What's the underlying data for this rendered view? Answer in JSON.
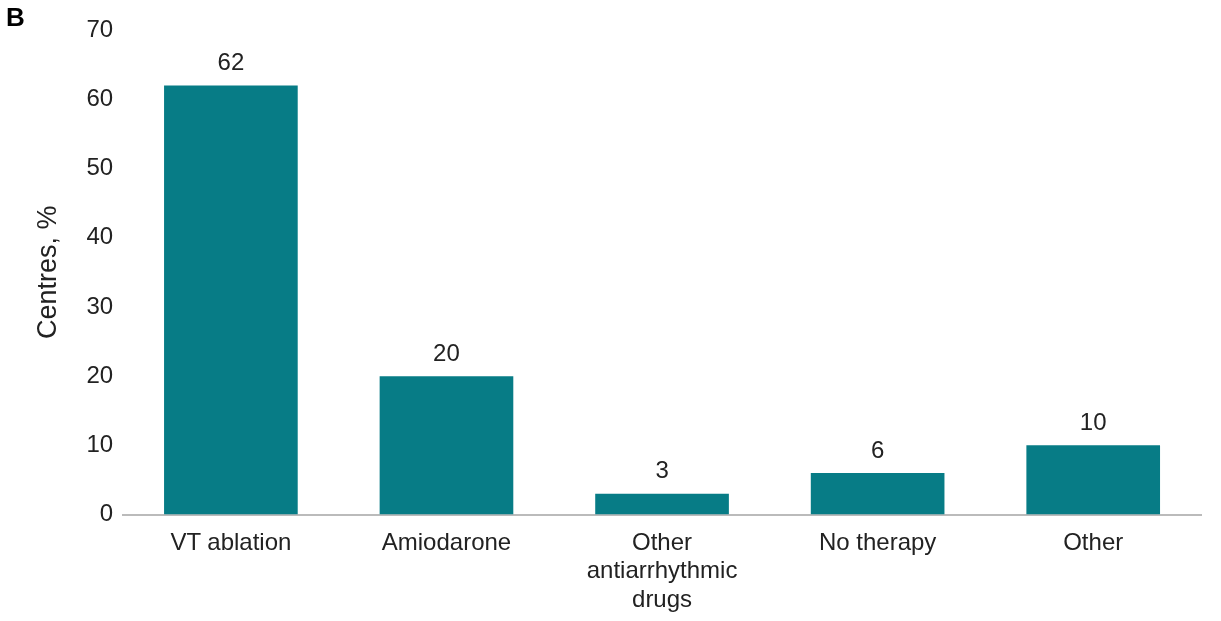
{
  "chart_data": {
    "type": "bar",
    "title": "B",
    "ylabel": "Centres, %",
    "categories": [
      "VT ablation",
      "Amiodarone",
      "Other antiarrhythmic drugs",
      "No therapy",
      "Other"
    ],
    "values": [
      62,
      20,
      3,
      6,
      10
    ],
    "color": "#077c86",
    "ylim": [
      0,
      70
    ],
    "yticks": [
      0,
      10,
      20,
      30,
      40,
      50,
      60,
      70
    ],
    "grid": false,
    "legend": false,
    "data_labels": true
  }
}
